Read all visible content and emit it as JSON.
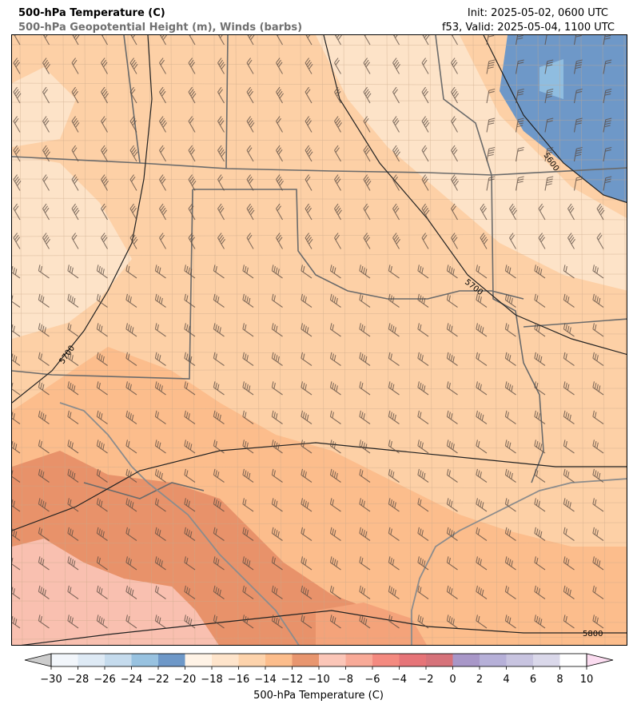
{
  "header": {
    "title_line1": "500-hPa Temperature (C)",
    "title_line2": "500-hPa Geopotential Height (m), Winds (barbs)",
    "init": "Init: 2025-05-02, 0600 UTC",
    "valid": "f53, Valid: 2025-05-04, 1100 UTC"
  },
  "map": {
    "contour_labels": [
      {
        "text": "5600"
      },
      {
        "text": "5700"
      },
      {
        "text": "5700"
      },
      {
        "text": "5800"
      }
    ],
    "region_colors": {
      "cold_pocket": "#6e98c8",
      "cold_core": "#8fbde0",
      "light": "#fde3c8",
      "base": "#fdd0a6",
      "warmer": "#fcbd8c",
      "warm": "#f4a37a",
      "hot": "#e8926a",
      "hottest": "#f9c0b0"
    }
  },
  "colorbar": {
    "title": "500-hPa Temperature (C)",
    "ticks": [
      "−30",
      "−28",
      "−26",
      "−24",
      "−22",
      "−20",
      "−18",
      "−16",
      "−14",
      "−12",
      "−10",
      "−8",
      "−6",
      "−4",
      "−2",
      "0",
      "2",
      "4",
      "6",
      "8",
      "10"
    ],
    "colors": [
      "#f2f6fb",
      "#deeaf5",
      "#c5dbed",
      "#98c2e0",
      "#6e98c8",
      "#fff3e6",
      "#fee4cb",
      "#fdd3ac",
      "#fcbd8c",
      "#e8966f",
      "#fbc6b8",
      "#f8aa98",
      "#f48a80",
      "#e67478",
      "#d6727a",
      "#a897c8",
      "#b6b0d8",
      "#c8c4e0",
      "#dad8ea",
      "#ffffff"
    ],
    "under_color": "#cccccc",
    "over_color": "#fbdcf0"
  }
}
